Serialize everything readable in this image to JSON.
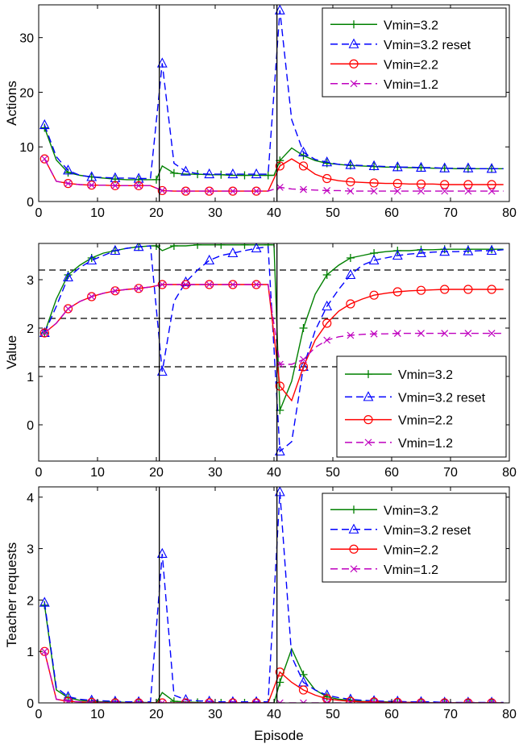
{
  "figure": {
    "xlabel": "Episode"
  },
  "legend": [
    {
      "label": "Vmin=3.2",
      "color": "#008000",
      "dash": "solid",
      "marker": "plus"
    },
    {
      "label": "Vmin=3.2 reset",
      "color": "#0000ff",
      "dash": "dashed",
      "marker": "triangle"
    },
    {
      "label": "Vmin=2.2",
      "color": "#ff0000",
      "dash": "solid",
      "marker": "circle"
    },
    {
      "label": "Vmin=1.2",
      "color": "#bf00bf",
      "dash": "dashed",
      "marker": "x"
    }
  ],
  "chart_data": [
    {
      "type": "line",
      "title": "",
      "xlabel": "",
      "ylabel": "Actions",
      "xlim": [
        0,
        80
      ],
      "ylim": [
        0,
        36
      ],
      "xticks": [
        0,
        10,
        20,
        30,
        40,
        50,
        60,
        70,
        80
      ],
      "yticks": [
        0,
        10,
        20,
        30
      ],
      "vlines": [
        20.5,
        40.5
      ],
      "hlines": [],
      "legend_position": "top-right",
      "series": [
        {
          "name": "Vmin=3.2",
          "x": [
            1,
            3,
            5,
            7,
            9,
            11,
            13,
            15,
            17,
            19,
            20,
            21,
            23,
            25,
            27,
            29,
            31,
            33,
            35,
            37,
            39,
            40,
            41,
            43,
            45,
            47,
            49,
            51,
            53,
            55,
            57,
            59,
            61,
            63,
            65,
            67,
            69,
            71,
            73,
            75,
            77,
            79
          ],
          "y": [
            13.5,
            7.6,
            5.3,
            4.8,
            4.5,
            4.3,
            4.1,
            4.0,
            4.0,
            4.0,
            4.0,
            6.5,
            5.2,
            5.0,
            5.0,
            4.9,
            4.9,
            4.8,
            4.8,
            4.8,
            4.8,
            4.8,
            7.5,
            9.8,
            8.4,
            7.5,
            7.0,
            6.8,
            6.6,
            6.5,
            6.4,
            6.3,
            6.3,
            6.2,
            6.2,
            6.1,
            6.1,
            6.0,
            6.0,
            6.0,
            6.0,
            6.0
          ]
        },
        {
          "name": "Vmin=3.2 reset",
          "x": [
            1,
            3,
            5,
            7,
            9,
            11,
            13,
            15,
            17,
            19,
            21,
            23,
            25,
            27,
            29,
            31,
            33,
            35,
            37,
            39,
            41,
            43,
            45,
            47,
            49,
            51,
            53,
            55,
            57,
            59,
            61,
            63,
            65,
            67,
            69,
            71,
            73,
            75,
            77,
            79
          ],
          "y": [
            14.0,
            8.2,
            5.7,
            4.8,
            4.5,
            4.4,
            4.3,
            4.3,
            4.2,
            4.2,
            25.3,
            7.0,
            5.5,
            5.1,
            5.0,
            5.0,
            5.0,
            5.0,
            5.0,
            5.0,
            35.0,
            15.0,
            9.0,
            7.7,
            7.2,
            6.8,
            6.7,
            6.6,
            6.5,
            6.4,
            6.3,
            6.3,
            6.2,
            6.2,
            6.1,
            6.1,
            6.1,
            6.0,
            6.0,
            6.0
          ]
        },
        {
          "name": "Vmin=2.2",
          "x": [
            1,
            3,
            5,
            7,
            9,
            11,
            13,
            15,
            17,
            19,
            21,
            23,
            25,
            27,
            29,
            31,
            33,
            35,
            37,
            39,
            41,
            43,
            45,
            47,
            49,
            51,
            53,
            55,
            57,
            59,
            61,
            63,
            65,
            67,
            69,
            71,
            73,
            75,
            77,
            79
          ],
          "y": [
            7.8,
            3.7,
            3.3,
            3.1,
            3.0,
            3.0,
            2.9,
            2.9,
            2.9,
            2.9,
            2.0,
            1.9,
            1.9,
            1.9,
            1.9,
            1.9,
            1.9,
            1.9,
            1.9,
            1.9,
            6.5,
            7.8,
            6.5,
            5.0,
            4.2,
            3.8,
            3.6,
            3.5,
            3.4,
            3.3,
            3.3,
            3.2,
            3.2,
            3.2,
            3.1,
            3.1,
            3.1,
            3.1,
            3.1,
            3.1
          ]
        },
        {
          "name": "Vmin=1.2",
          "x": [
            1,
            3,
            5,
            7,
            9,
            11,
            13,
            15,
            17,
            19,
            21,
            23,
            25,
            27,
            29,
            31,
            33,
            35,
            37,
            39,
            41,
            43,
            45,
            47,
            49,
            51,
            53,
            55,
            57,
            59,
            61,
            63,
            65,
            67,
            69,
            71,
            73,
            75,
            77,
            79
          ],
          "y": [
            7.8,
            3.7,
            3.3,
            3.1,
            3.0,
            3.0,
            2.9,
            2.9,
            2.9,
            2.9,
            2.0,
            1.9,
            1.9,
            1.9,
            1.9,
            1.9,
            1.9,
            1.9,
            1.9,
            1.9,
            2.6,
            2.3,
            2.2,
            2.1,
            2.0,
            2.0,
            1.9,
            1.9,
            1.9,
            1.9,
            1.9,
            1.9,
            1.9,
            1.9,
            1.9,
            1.9,
            1.9,
            1.9,
            1.9,
            1.9
          ]
        }
      ]
    },
    {
      "type": "line",
      "title": "",
      "xlabel": "",
      "ylabel": "Value",
      "xlim": [
        0,
        80
      ],
      "ylim": [
        -0.75,
        3.75
      ],
      "xticks": [
        0,
        10,
        20,
        30,
        40,
        50,
        60,
        70,
        80
      ],
      "yticks": [
        0,
        1,
        2,
        3
      ],
      "vlines": [
        20.5,
        40.5
      ],
      "hlines": [
        3.2,
        2.2,
        1.2
      ],
      "legend_position": "bottom-right",
      "series": [
        {
          "name": "Vmin=3.2",
          "x": [
            1,
            3,
            5,
            7,
            9,
            11,
            13,
            15,
            17,
            19,
            20,
            21,
            23,
            25,
            27,
            29,
            31,
            33,
            35,
            37,
            39,
            40,
            41,
            43,
            45,
            47,
            49,
            51,
            53,
            55,
            57,
            59,
            61,
            63,
            65,
            67,
            69,
            71,
            73,
            75,
            77,
            79
          ],
          "y": [
            1.9,
            2.6,
            3.1,
            3.3,
            3.45,
            3.55,
            3.6,
            3.65,
            3.68,
            3.7,
            3.7,
            3.6,
            3.7,
            3.7,
            3.72,
            3.72,
            3.72,
            3.72,
            3.72,
            3.72,
            3.72,
            3.72,
            0.3,
            0.9,
            2.0,
            2.7,
            3.1,
            3.3,
            3.45,
            3.5,
            3.55,
            3.58,
            3.6,
            3.6,
            3.62,
            3.62,
            3.63,
            3.63,
            3.63,
            3.63,
            3.63,
            3.63
          ]
        },
        {
          "name": "Vmin=3.2 reset",
          "x": [
            1,
            3,
            5,
            7,
            9,
            11,
            13,
            15,
            17,
            19,
            21,
            23,
            25,
            27,
            29,
            31,
            33,
            35,
            37,
            39,
            41,
            43,
            45,
            47,
            49,
            51,
            53,
            55,
            57,
            59,
            61,
            63,
            65,
            67,
            69,
            71,
            73,
            75,
            77,
            79
          ],
          "y": [
            1.9,
            2.45,
            3.05,
            3.25,
            3.4,
            3.5,
            3.6,
            3.65,
            3.68,
            3.7,
            1.1,
            2.55,
            2.95,
            3.2,
            3.4,
            3.5,
            3.55,
            3.6,
            3.65,
            3.68,
            -0.55,
            -0.35,
            1.2,
            1.95,
            2.45,
            2.8,
            3.1,
            3.3,
            3.4,
            3.45,
            3.5,
            3.53,
            3.55,
            3.57,
            3.58,
            3.58,
            3.59,
            3.6,
            3.6,
            3.62
          ]
        },
        {
          "name": "Vmin=2.2",
          "x": [
            1,
            3,
            5,
            7,
            9,
            11,
            13,
            15,
            17,
            19,
            21,
            23,
            25,
            27,
            29,
            31,
            33,
            35,
            37,
            39,
            41,
            43,
            45,
            47,
            49,
            51,
            53,
            55,
            57,
            59,
            61,
            63,
            65,
            67,
            69,
            71,
            73,
            75,
            77,
            79
          ],
          "y": [
            1.9,
            2.1,
            2.4,
            2.55,
            2.65,
            2.72,
            2.77,
            2.8,
            2.82,
            2.85,
            2.9,
            2.9,
            2.9,
            2.9,
            2.9,
            2.9,
            2.9,
            2.9,
            2.9,
            2.9,
            0.8,
            0.5,
            1.2,
            1.75,
            2.1,
            2.35,
            2.5,
            2.6,
            2.68,
            2.72,
            2.75,
            2.77,
            2.78,
            2.79,
            2.8,
            2.8,
            2.8,
            2.8,
            2.8,
            2.8
          ]
        },
        {
          "name": "Vmin=1.2",
          "x": [
            1,
            3,
            5,
            7,
            9,
            11,
            13,
            15,
            17,
            19,
            21,
            23,
            25,
            27,
            29,
            31,
            33,
            35,
            37,
            39,
            41,
            43,
            45,
            47,
            49,
            51,
            53,
            55,
            57,
            59,
            61,
            63,
            65,
            67,
            69,
            71,
            73,
            75,
            77,
            79
          ],
          "y": [
            1.9,
            2.1,
            2.4,
            2.55,
            2.65,
            2.72,
            2.77,
            2.8,
            2.82,
            2.85,
            2.9,
            2.9,
            2.9,
            2.9,
            2.9,
            2.9,
            2.9,
            2.9,
            2.9,
            2.9,
            1.25,
            1.25,
            1.35,
            1.6,
            1.75,
            1.82,
            1.85,
            1.87,
            1.88,
            1.88,
            1.89,
            1.89,
            1.89,
            1.89,
            1.89,
            1.89,
            1.89,
            1.89,
            1.89,
            1.89
          ]
        }
      ]
    },
    {
      "type": "line",
      "title": "",
      "xlabel": "Episode",
      "ylabel": "Teacher requests",
      "xlim": [
        0,
        80
      ],
      "ylim": [
        0,
        4.2
      ],
      "xticks": [
        0,
        10,
        20,
        30,
        40,
        50,
        60,
        70,
        80
      ],
      "yticks": [
        0,
        1,
        2,
        3,
        4
      ],
      "vlines": [
        20.5,
        40.5
      ],
      "hlines": [],
      "legend_position": "top-right",
      "series": [
        {
          "name": "Vmin=3.2",
          "x": [
            1,
            3,
            5,
            7,
            9,
            11,
            13,
            15,
            17,
            19,
            20,
            21,
            23,
            25,
            27,
            29,
            31,
            33,
            35,
            37,
            39,
            40,
            41,
            43,
            45,
            47,
            49,
            51,
            53,
            55,
            57,
            59,
            61,
            63,
            65,
            67,
            69,
            71,
            73,
            75,
            77,
            79
          ],
          "y": [
            1.9,
            0.25,
            0.1,
            0.05,
            0.03,
            0.02,
            0.02,
            0.01,
            0.01,
            0.01,
            0.0,
            0.2,
            0.03,
            0.02,
            0.01,
            0.0,
            0.0,
            0.0,
            0.0,
            0.0,
            0.0,
            0.0,
            0.4,
            1.05,
            0.55,
            0.25,
            0.12,
            0.07,
            0.05,
            0.03,
            0.02,
            0.02,
            0.01,
            0.01,
            0.01,
            0.0,
            0.0,
            0.0,
            0.0,
            0.0,
            0.0,
            0.0
          ]
        },
        {
          "name": "Vmin=3.2 reset",
          "x": [
            1,
            3,
            5,
            7,
            9,
            11,
            13,
            15,
            17,
            19,
            21,
            23,
            25,
            27,
            29,
            31,
            33,
            35,
            37,
            39,
            41,
            43,
            45,
            47,
            49,
            51,
            53,
            55,
            57,
            59,
            61,
            63,
            65,
            67,
            69,
            71,
            73,
            75,
            77,
            79
          ],
          "y": [
            1.95,
            0.3,
            0.12,
            0.07,
            0.05,
            0.04,
            0.03,
            0.02,
            0.02,
            0.02,
            2.9,
            0.15,
            0.06,
            0.04,
            0.03,
            0.02,
            0.02,
            0.02,
            0.02,
            0.02,
            4.1,
            0.9,
            0.4,
            0.25,
            0.15,
            0.1,
            0.07,
            0.05,
            0.04,
            0.03,
            0.03,
            0.02,
            0.02,
            0.02,
            0.01,
            0.01,
            0.01,
            0.01,
            0.01,
            0.01
          ]
        },
        {
          "name": "Vmin=2.2",
          "x": [
            1,
            3,
            5,
            7,
            9,
            11,
            13,
            15,
            17,
            19,
            21,
            23,
            25,
            27,
            29,
            31,
            33,
            35,
            37,
            39,
            41,
            43,
            45,
            47,
            49,
            51,
            53,
            55,
            57,
            59,
            61,
            63,
            65,
            67,
            69,
            71,
            73,
            75,
            77,
            79
          ],
          "y": [
            1.0,
            0.07,
            0.03,
            0.02,
            0.01,
            0.01,
            0.0,
            0.0,
            0.0,
            0.0,
            0.0,
            0.0,
            0.0,
            0.0,
            0.0,
            0.0,
            0.0,
            0.0,
            0.0,
            0.0,
            0.6,
            0.4,
            0.25,
            0.15,
            0.08,
            0.05,
            0.03,
            0.02,
            0.02,
            0.01,
            0.01,
            0.01,
            0.0,
            0.0,
            0.0,
            0.0,
            0.0,
            0.0,
            0.0,
            0.0
          ]
        },
        {
          "name": "Vmin=1.2",
          "x": [
            1,
            3,
            5,
            7,
            9,
            11,
            13,
            15,
            17,
            19,
            21,
            23,
            25,
            27,
            29,
            31,
            33,
            35,
            37,
            39,
            41,
            43,
            45,
            47,
            49,
            51,
            53,
            55,
            57,
            59,
            61,
            63,
            65,
            67,
            69,
            71,
            73,
            75,
            77,
            79
          ],
          "y": [
            1.0,
            0.07,
            0.03,
            0.02,
            0.01,
            0.01,
            0.0,
            0.0,
            0.0,
            0.0,
            0.0,
            0.0,
            0.0,
            0.0,
            0.0,
            0.0,
            0.0,
            0.0,
            0.0,
            0.0,
            0.0,
            0.0,
            0.0,
            0.0,
            0.0,
            0.0,
            0.0,
            0.0,
            0.0,
            0.0,
            0.0,
            0.0,
            0.0,
            0.0,
            0.0,
            0.0,
            0.0,
            0.0,
            0.0,
            0.0
          ]
        }
      ]
    }
  ]
}
